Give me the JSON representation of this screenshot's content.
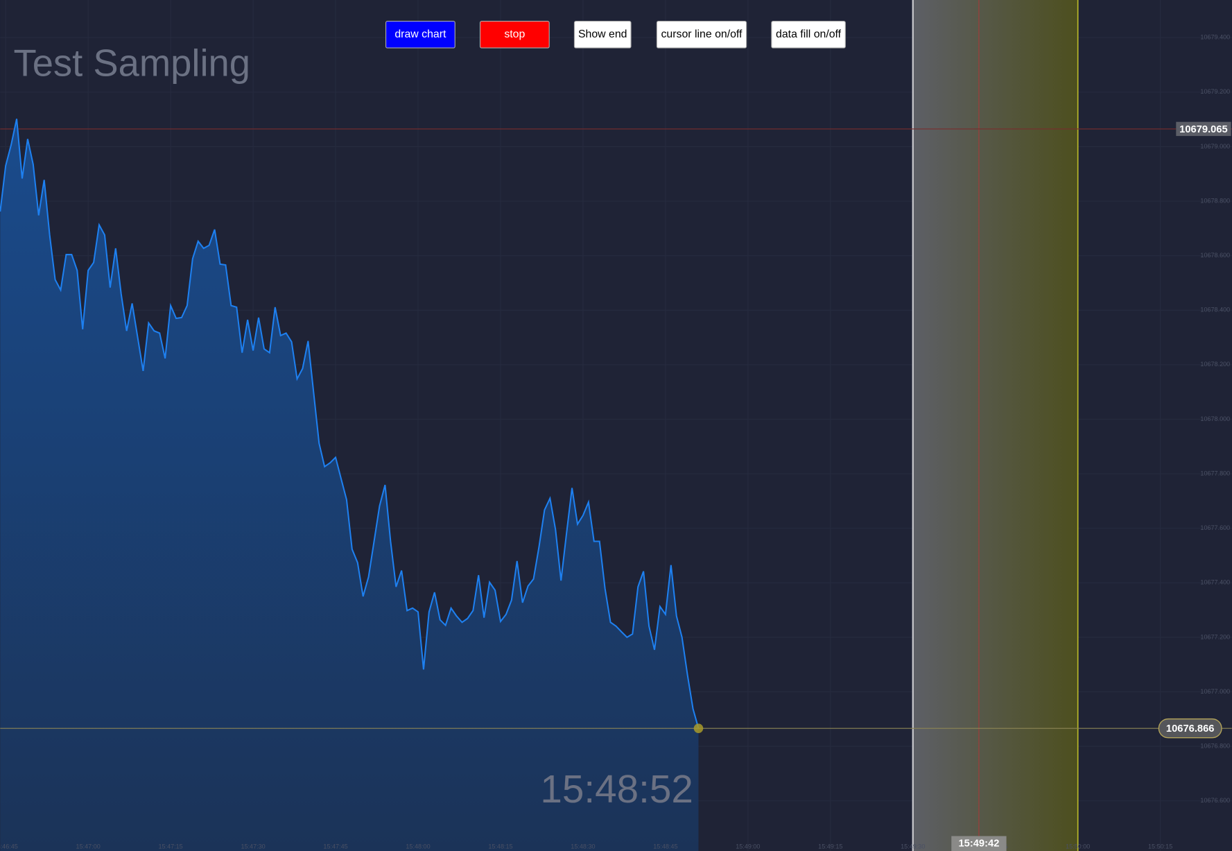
{
  "buttons": [
    "draw chart",
    "stop",
    "Show end",
    "cursor line on/off",
    "data fill on/off"
  ],
  "chart_data": {
    "type": "line",
    "title": "Test Sampling",
    "clock": "15:48:52",
    "color": "#1e80f0",
    "x": [
      "15:46:44",
      "15:46:45",
      "15:46:46",
      "15:46:47",
      "15:46:48",
      "15:46:49",
      "15:46:50",
      "15:46:51",
      "15:46:52",
      "15:46:53",
      "15:46:54",
      "15:46:55",
      "15:46:56",
      "15:46:57",
      "15:46:58",
      "15:46:59",
      "15:47:00",
      "15:47:01",
      "15:47:02",
      "15:47:03",
      "15:47:04",
      "15:47:05",
      "15:47:06",
      "15:47:07",
      "15:47:08",
      "15:47:09",
      "15:47:10",
      "15:47:11",
      "15:47:12",
      "15:47:13",
      "15:47:14",
      "15:47:15",
      "15:47:16",
      "15:47:17",
      "15:47:18",
      "15:47:19",
      "15:47:20",
      "15:47:21",
      "15:47:22",
      "15:47:23",
      "15:47:24",
      "15:47:25",
      "15:47:26",
      "15:47:27",
      "15:47:28",
      "15:47:29",
      "15:47:30",
      "15:47:31",
      "15:47:32",
      "15:47:33",
      "15:47:34",
      "15:47:35",
      "15:47:36",
      "15:47:37",
      "15:47:38",
      "15:47:39",
      "15:47:40",
      "15:47:41",
      "15:47:42",
      "15:47:43",
      "15:47:44",
      "15:47:45",
      "15:47:46",
      "15:47:47",
      "15:47:48",
      "15:47:49",
      "15:47:50",
      "15:47:51",
      "15:47:52",
      "15:47:53",
      "15:47:54",
      "15:47:55",
      "15:47:56",
      "15:47:57",
      "15:47:58",
      "15:47:59",
      "15:48:00",
      "15:48:01",
      "15:48:02",
      "15:48:03",
      "15:48:04",
      "15:48:05",
      "15:48:06",
      "15:48:07",
      "15:48:08",
      "15:48:09",
      "15:48:10",
      "15:48:11",
      "15:48:12",
      "15:48:13",
      "15:48:14",
      "15:48:15",
      "15:48:16",
      "15:48:17",
      "15:48:18",
      "15:48:19",
      "15:48:20",
      "15:48:21",
      "15:48:22",
      "15:48:23",
      "15:48:24",
      "15:48:25",
      "15:48:26",
      "15:48:27",
      "15:48:28",
      "15:48:29",
      "15:48:30",
      "15:48:31",
      "15:48:32",
      "15:48:33",
      "15:48:34",
      "15:48:35",
      "15:48:36",
      "15:48:37",
      "15:48:38",
      "15:48:39",
      "15:48:40",
      "15:48:41",
      "15:48:42",
      "15:48:43",
      "15:48:44",
      "15:48:45",
      "15:48:46",
      "15:48:47",
      "15:48:48",
      "15:48:49",
      "15:48:50",
      "15:48:51"
    ],
    "values": [
      10678.762,
      10678.93,
      10679.007,
      10679.102,
      10678.883,
      10679.028,
      10678.935,
      10678.748,
      10678.878,
      10678.676,
      10678.512,
      10678.474,
      10678.604,
      10678.604,
      10678.546,
      10678.33,
      10678.546,
      10678.575,
      10678.713,
      10678.676,
      10678.483,
      10678.627,
      10678.46,
      10678.324,
      10678.425,
      10678.301,
      10678.177,
      10678.353,
      10678.324,
      10678.316,
      10678.223,
      10678.417,
      10678.37,
      10678.373,
      10678.417,
      10678.589,
      10678.653,
      10678.627,
      10678.638,
      10678.696,
      10678.569,
      10678.566,
      10678.417,
      10678.411,
      10678.244,
      10678.365,
      10678.252,
      10678.373,
      10678.258,
      10678.244,
      10678.411,
      10678.307,
      10678.316,
      10678.284,
      10678.148,
      10678.186,
      10678.287,
      10678.099,
      10677.912,
      10677.826,
      10677.84,
      10677.86,
      10677.782,
      10677.705,
      10677.523,
      10677.474,
      10677.35,
      10677.422,
      10677.552,
      10677.682,
      10677.759,
      10677.552,
      10677.385,
      10677.445,
      10677.298,
      10677.307,
      10677.293,
      10677.082,
      10677.293,
      10677.365,
      10677.264,
      10677.244,
      10677.307,
      10677.278,
      10677.255,
      10677.269,
      10677.298,
      10677.428,
      10677.272,
      10677.402,
      10677.373,
      10677.258,
      10677.284,
      10677.336,
      10677.48,
      10677.327,
      10677.388,
      10677.414,
      10677.532,
      10677.667,
      10677.71,
      10677.595,
      10677.408,
      10677.581,
      10677.748,
      10677.615,
      10677.647,
      10677.696,
      10677.552,
      10677.552,
      10677.379,
      10677.255,
      10677.241,
      10677.22,
      10677.2,
      10677.212,
      10677.385,
      10677.442,
      10677.241,
      10677.154,
      10677.313,
      10677.284,
      10677.465,
      10677.278,
      10677.2,
      10677.062,
      10676.938,
      10676.866
    ],
    "xlim": [
      "15:46:44",
      "15:50:28"
    ],
    "xticks": [
      "15:46:45",
      "15:47:00",
      "15:47:15",
      "15:47:30",
      "15:47:45",
      "15:48:00",
      "15:48:15",
      "15:48:30",
      "15:48:45",
      "15:49:00",
      "15:49:15",
      "15:49:30",
      "15:49:45",
      "15:50:00",
      "15:50:15"
    ],
    "ylim": [
      10676.416,
      10679.538
    ],
    "yticks": [
      {
        "value": 10676.6,
        "label": "10676.600"
      },
      {
        "value": 10676.8,
        "label": "10676.800"
      },
      {
        "value": 10677.0,
        "label": "10677.000"
      },
      {
        "value": 10677.2,
        "label": "10677.200"
      },
      {
        "value": 10677.4,
        "label": "10677.400"
      },
      {
        "value": 10677.6,
        "label": "10677.600"
      },
      {
        "value": 10677.8,
        "label": "10677.800"
      },
      {
        "value": 10678.0,
        "label": "10678.000"
      },
      {
        "value": 10678.2,
        "label": "10678.200"
      },
      {
        "value": 10678.4,
        "label": "10678.400"
      },
      {
        "value": 10678.6,
        "label": "10678.600"
      },
      {
        "value": 10678.8,
        "label": "10678.800"
      },
      {
        "value": 10679.0,
        "label": "10679.000"
      },
      {
        "value": 10679.2,
        "label": "10679.200"
      },
      {
        "value": 10679.4,
        "label": "10679.400"
      }
    ],
    "grid": true,
    "fill": true,
    "price_line": 10679.065,
    "cursor_x": "15:49:42",
    "highlight_band": [
      "15:49:30",
      "15:50:00"
    ]
  }
}
